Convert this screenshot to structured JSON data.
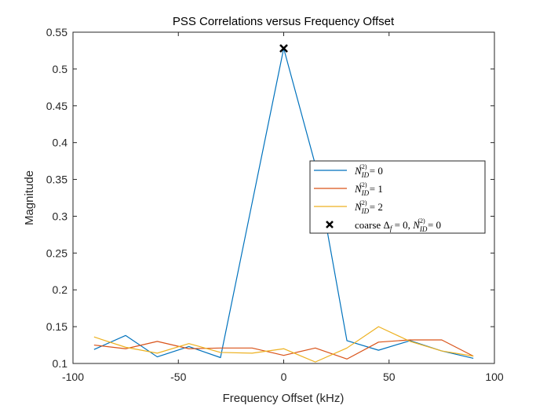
{
  "chart_data": {
    "type": "line",
    "title": "PSS Correlations versus Frequency Offset",
    "xlabel": "Frequency Offset (kHz)",
    "ylabel": "Magnitude",
    "xlim": [
      -100,
      100
    ],
    "ylim": [
      0.1,
      0.55
    ],
    "xticks": [
      -100,
      -50,
      0,
      50,
      100
    ],
    "yticks": [
      0.1,
      0.15,
      0.2,
      0.25,
      0.3,
      0.35,
      0.4,
      0.45,
      0.5,
      0.55
    ],
    "xtick_labels": [
      "-100",
      "-50",
      "0",
      "50",
      "100"
    ],
    "ytick_labels": [
      "0.1",
      "0.15",
      "0.2",
      "0.25",
      "0.3",
      "0.35",
      "0.4",
      "0.45",
      "0.5",
      "0.55"
    ],
    "x": [
      -90,
      -75,
      -60,
      -45,
      -30,
      -15,
      0,
      15,
      30,
      45,
      60,
      75,
      90
    ],
    "series": [
      {
        "name": "N_ID^(2) = 0",
        "legend_label": {
          "base": "N",
          "sup": "(2)",
          "sub": "ID",
          "rest": " = 0"
        },
        "color": "#0072BD",
        "values": [
          0.119,
          0.138,
          0.109,
          0.123,
          0.108,
          0.318,
          0.528,
          0.37,
          0.131,
          0.118,
          0.131,
          0.117,
          0.107
        ]
      },
      {
        "name": "N_ID^(2) = 1",
        "legend_label": {
          "base": "N",
          "sup": "(2)",
          "sub": "ID",
          "rest": " = 1"
        },
        "color": "#D95319",
        "values": [
          0.125,
          0.12,
          0.13,
          0.12,
          0.121,
          0.121,
          0.111,
          0.121,
          0.106,
          0.129,
          0.132,
          0.132,
          0.11
        ]
      },
      {
        "name": "N_ID^(2) = 2",
        "legend_label": {
          "base": "N",
          "sup": "(2)",
          "sub": "ID",
          "rest": " = 2"
        },
        "color": "#EDB120",
        "values": [
          0.136,
          0.122,
          0.114,
          0.127,
          0.115,
          0.114,
          0.12,
          0.102,
          0.121,
          0.15,
          0.13,
          0.117,
          0.11
        ]
      }
    ],
    "marker": {
      "x": 0,
      "y": 0.528,
      "symbol": "x",
      "color": "#000000",
      "legend_label": {
        "prefix": "coarse ",
        "delta": "Δ",
        "delta_sub": "f",
        "mid": " = 0, ",
        "base": "N",
        "sup": "(2)",
        "sub": "ID",
        "rest": " = 0"
      }
    },
    "grid": false,
    "legend_position": "right"
  }
}
